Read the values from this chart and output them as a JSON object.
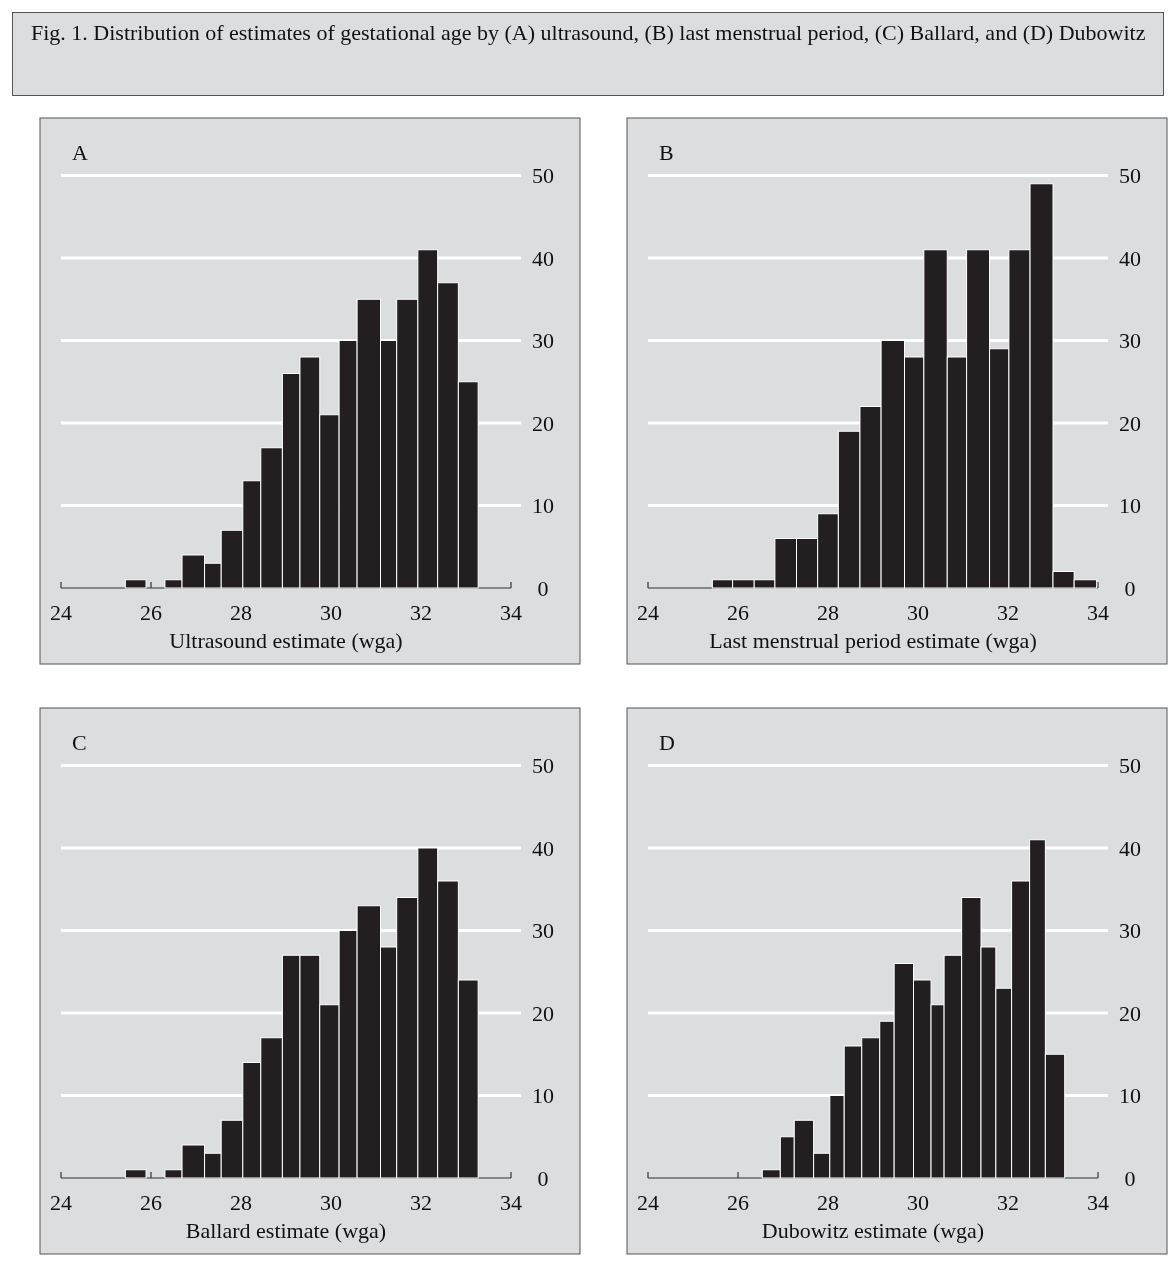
{
  "chart_data": [
    {
      "type": "histogram",
      "title": "A",
      "xlabel": "Ultrasound estimate (wga)",
      "annotations": [
        "Fig. 1. Distribution of estimates of gestational age by (A) ultrasound, (B) last menstrual period, (C) Ballard, and (D) Dubowitz"
      ],
      "bins": [
        25.43,
        25.89,
        26.31,
        26.69,
        27.19,
        27.56,
        28.04,
        28.44,
        28.92,
        29.31,
        29.75,
        30.18,
        30.58,
        31.1,
        31.46,
        31.93,
        32.37,
        32.83,
        33.27
      ],
      "values": [
        1,
        0,
        1,
        4,
        3,
        7,
        13,
        17,
        26,
        28,
        21,
        30,
        35,
        30,
        35,
        41,
        37,
        25
      ],
      "color": "#231f20",
      "xlim": [
        24,
        34
      ],
      "xticks": [
        24,
        26,
        28,
        30,
        32,
        34
      ],
      "ylim": [
        0,
        50
      ],
      "yticks": [
        0,
        10,
        20,
        30,
        40,
        50
      ],
      "grid": "y"
    },
    {
      "type": "histogram",
      "title": "B",
      "xlabel": "Last menstrual period estimate (wga)",
      "bins": [
        25.43,
        25.88,
        26.36,
        26.82,
        27.3,
        27.77,
        28.23,
        28.71,
        29.18,
        29.7,
        30.13,
        30.65,
        31.08,
        31.59,
        32.02,
        32.49,
        33.0,
        33.47,
        33.97
      ],
      "values": [
        1,
        1,
        1,
        6,
        6,
        9,
        19,
        22,
        30,
        28,
        41,
        28,
        41,
        29,
        41,
        49,
        2,
        1
      ],
      "color": "#231f20",
      "xlim": [
        24,
        34
      ],
      "xticks": [
        24,
        26,
        28,
        30,
        32,
        34
      ],
      "ylim": [
        0,
        50
      ],
      "yticks": [
        0,
        10,
        20,
        30,
        40,
        50
      ],
      "grid": "y"
    },
    {
      "type": "histogram",
      "title": "C",
      "xlabel": "Ballard estimate (wga)",
      "bins": [
        25.43,
        25.89,
        26.31,
        26.69,
        27.19,
        27.56,
        28.04,
        28.44,
        28.92,
        29.31,
        29.75,
        30.18,
        30.58,
        31.1,
        31.46,
        31.93,
        32.37,
        32.83,
        33.27
      ],
      "values": [
        1,
        0,
        1,
        4,
        3,
        7,
        14,
        17,
        27,
        27,
        21,
        30,
        33,
        28,
        34,
        40,
        36,
        24
      ],
      "color": "#231f20",
      "xlim": [
        24,
        34
      ],
      "xticks": [
        24,
        26,
        28,
        30,
        32,
        34
      ],
      "ylim": [
        0,
        50
      ],
      "yticks": [
        0,
        10,
        20,
        30,
        40,
        50
      ],
      "grid": "y"
    },
    {
      "type": "histogram",
      "title": "D",
      "xlabel": "Dubowitz estimate (wga)",
      "bins": [
        26.54,
        26.94,
        27.25,
        27.68,
        28.04,
        28.36,
        28.75,
        29.15,
        29.47,
        29.9,
        30.29,
        30.58,
        30.97,
        31.4,
        31.73,
        32.08,
        32.48,
        32.83,
        33.26
      ],
      "values": [
        1,
        5,
        7,
        3,
        10,
        16,
        17,
        19,
        26,
        24,
        21,
        27,
        34,
        28,
        23,
        36,
        41,
        15
      ],
      "color": "#231f20",
      "xlim": [
        24,
        34
      ],
      "xticks": [
        24,
        26,
        28,
        30,
        32,
        34
      ],
      "ylim": [
        0,
        50
      ],
      "yticks": [
        0,
        10,
        20,
        30,
        40,
        50
      ],
      "grid": "y"
    }
  ]
}
